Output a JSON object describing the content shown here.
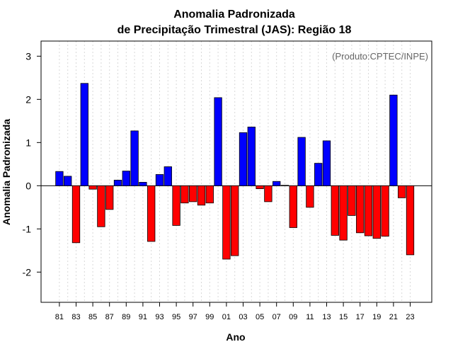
{
  "chart_data": {
    "type": "bar",
    "title": "Anomalia Padronizada",
    "subtitle": "de Precipitação Trimestral (JAS): Região 18",
    "xlabel": "Ano",
    "ylabel": "Anomalia Padronizada",
    "annotation": "(Produto:CPTEC/INPE)",
    "ylim": [
      -2.7,
      3.35
    ],
    "yticks": [
      -2,
      -1,
      0,
      1,
      2,
      3
    ],
    "xtick_labels": [
      "81",
      "83",
      "85",
      "87",
      "89",
      "91",
      "93",
      "95",
      "97",
      "99",
      "01",
      "03",
      "05",
      "07",
      "09",
      "11",
      "13",
      "15",
      "17",
      "19",
      "21",
      "23"
    ],
    "categories": [
      "1981",
      "1982",
      "1983",
      "1984",
      "1985",
      "1986",
      "1987",
      "1988",
      "1989",
      "1990",
      "1991",
      "1992",
      "1993",
      "1994",
      "1995",
      "1996",
      "1997",
      "1998",
      "1999",
      "2000",
      "2001",
      "2002",
      "2003",
      "2004",
      "2005",
      "2006",
      "2007",
      "2008",
      "2009",
      "2010",
      "2011",
      "2012",
      "2013",
      "2014",
      "2015",
      "2016",
      "2017",
      "2018",
      "2019",
      "2020",
      "2021",
      "2022",
      "2023"
    ],
    "values": [
      0.33,
      0.22,
      -1.32,
      2.37,
      -0.08,
      -0.95,
      -0.55,
      0.13,
      0.34,
      1.27,
      0.08,
      -1.29,
      0.26,
      0.44,
      -0.92,
      -0.4,
      -0.37,
      -0.45,
      -0.4,
      2.04,
      -1.7,
      -1.62,
      1.23,
      1.36,
      -0.07,
      -0.37,
      0.1,
      0.01,
      -0.97,
      1.12,
      -0.5,
      0.52,
      1.04,
      -1.15,
      -1.26,
      -0.69,
      -1.09,
      -1.16,
      -1.22,
      -1.17,
      2.1,
      -0.28,
      -1.6
    ],
    "positive_color": "#0000ff",
    "negative_color": "#ff0000",
    "grid": true
  }
}
